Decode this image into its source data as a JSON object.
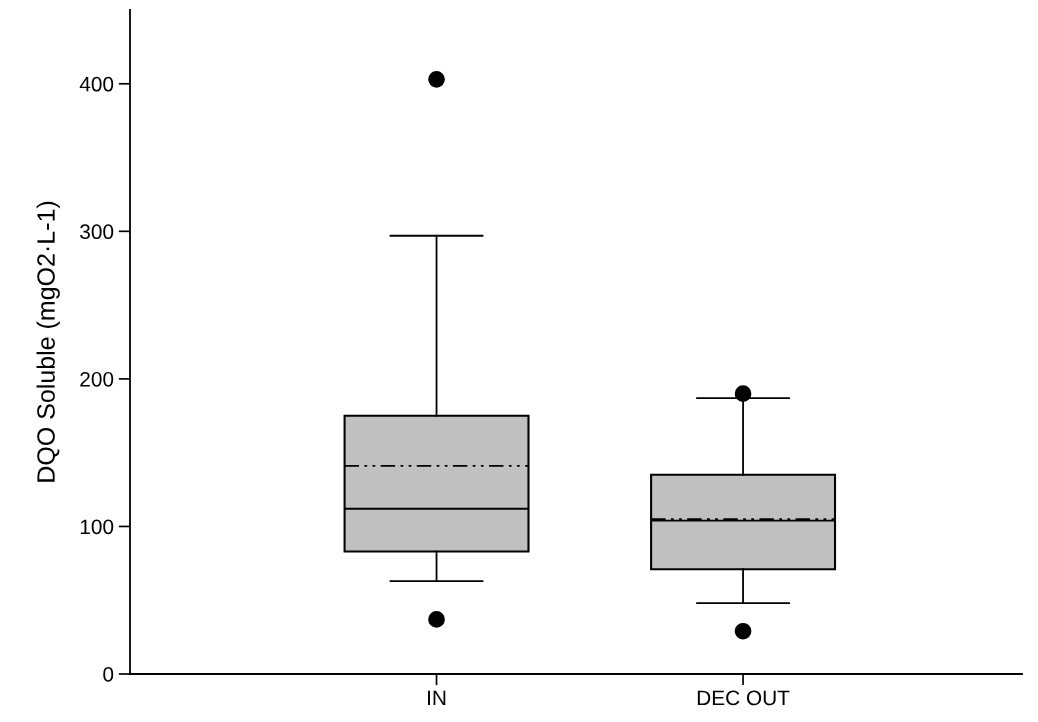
{
  "chart_data": {
    "type": "box",
    "ylabel": "DQO Soluble (mgO2·L-1)",
    "categories": [
      "IN",
      "DEC OUT"
    ],
    "boxes": [
      {
        "low": 63,
        "q1": 83,
        "median": 112,
        "q3": 175,
        "high": 297,
        "mean": 141,
        "outliers": [
          403,
          37
        ]
      },
      {
        "low": 48,
        "q1": 71,
        "median": 104,
        "q3": 135,
        "high": 187,
        "mean": 105,
        "outliers": [
          190,
          29
        ]
      }
    ],
    "color": "#c0c0c0",
    "ylim": [
      0,
      450
    ],
    "yticks": [
      0,
      100,
      200,
      300,
      400
    ],
    "grid": false
  }
}
